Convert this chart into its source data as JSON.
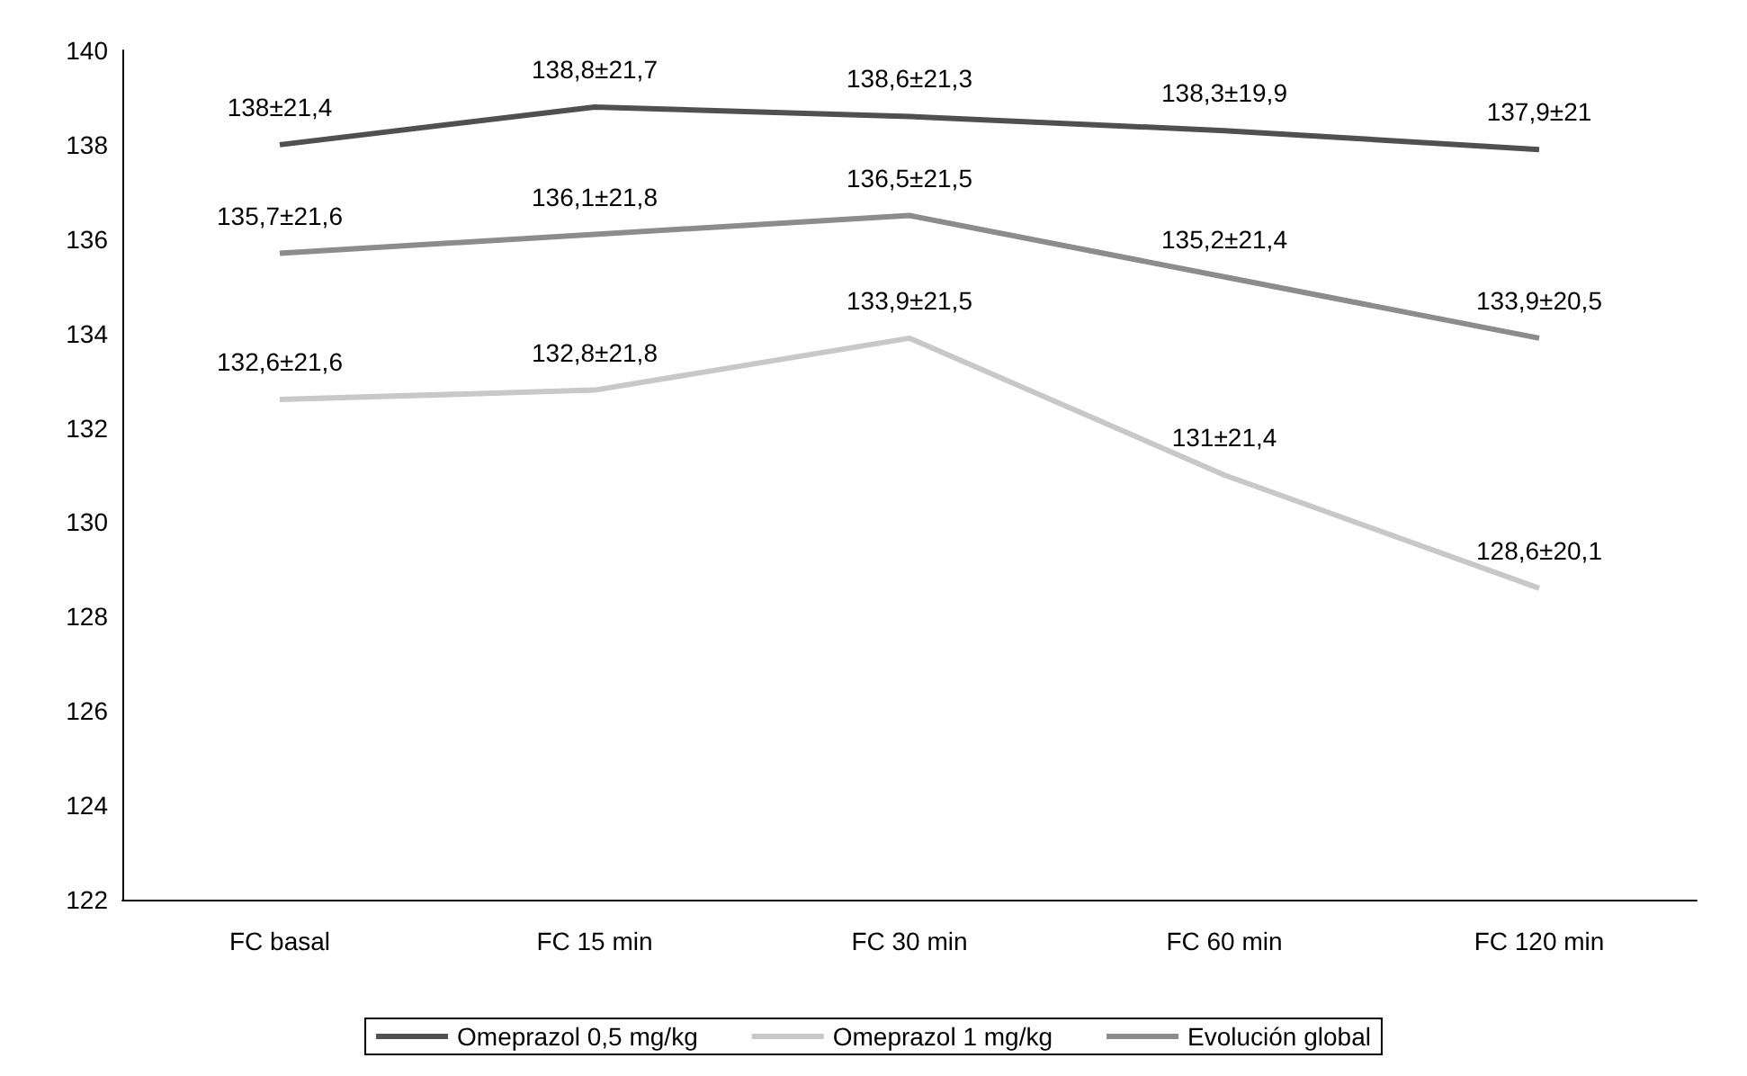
{
  "chart_data": {
    "type": "line",
    "categories": [
      "FC basal",
      "FC 15 min",
      "FC 30 min",
      "FC 60 min",
      "FC 120 min"
    ],
    "series": [
      {
        "name": "Omeprazol 0,5 mg/kg",
        "color": "#505050",
        "values": [
          138,
          138.8,
          138.6,
          138.3,
          137.9
        ],
        "value_labels": [
          "138±21,4",
          "138,8±21,7",
          "138,6±21,3",
          "138,3±19,9",
          "137,9±21"
        ]
      },
      {
        "name": "Omeprazol 1 mg/kg",
        "color": "#c8c8c8",
        "values": [
          132.6,
          132.8,
          133.9,
          131,
          128.6
        ],
        "value_labels": [
          "132,6±21,6",
          "132,8±21,8",
          "133,9±21,5",
          "131±21,4",
          "128,6±20,1"
        ]
      },
      {
        "name": "Evolución global",
        "color": "#8c8c8c",
        "values": [
          135.7,
          136.1,
          136.5,
          135.2,
          133.9
        ],
        "value_labels": [
          "135,7±21,6",
          "136,1±21,8",
          "136,5±21,5",
          "135,2±21,4",
          "133,9±20,5"
        ]
      }
    ],
    "ylim": [
      122,
      140
    ],
    "yticks": [
      122,
      124,
      126,
      128,
      130,
      132,
      134,
      136,
      138,
      140
    ],
    "grid": false,
    "legend": "bottom"
  }
}
